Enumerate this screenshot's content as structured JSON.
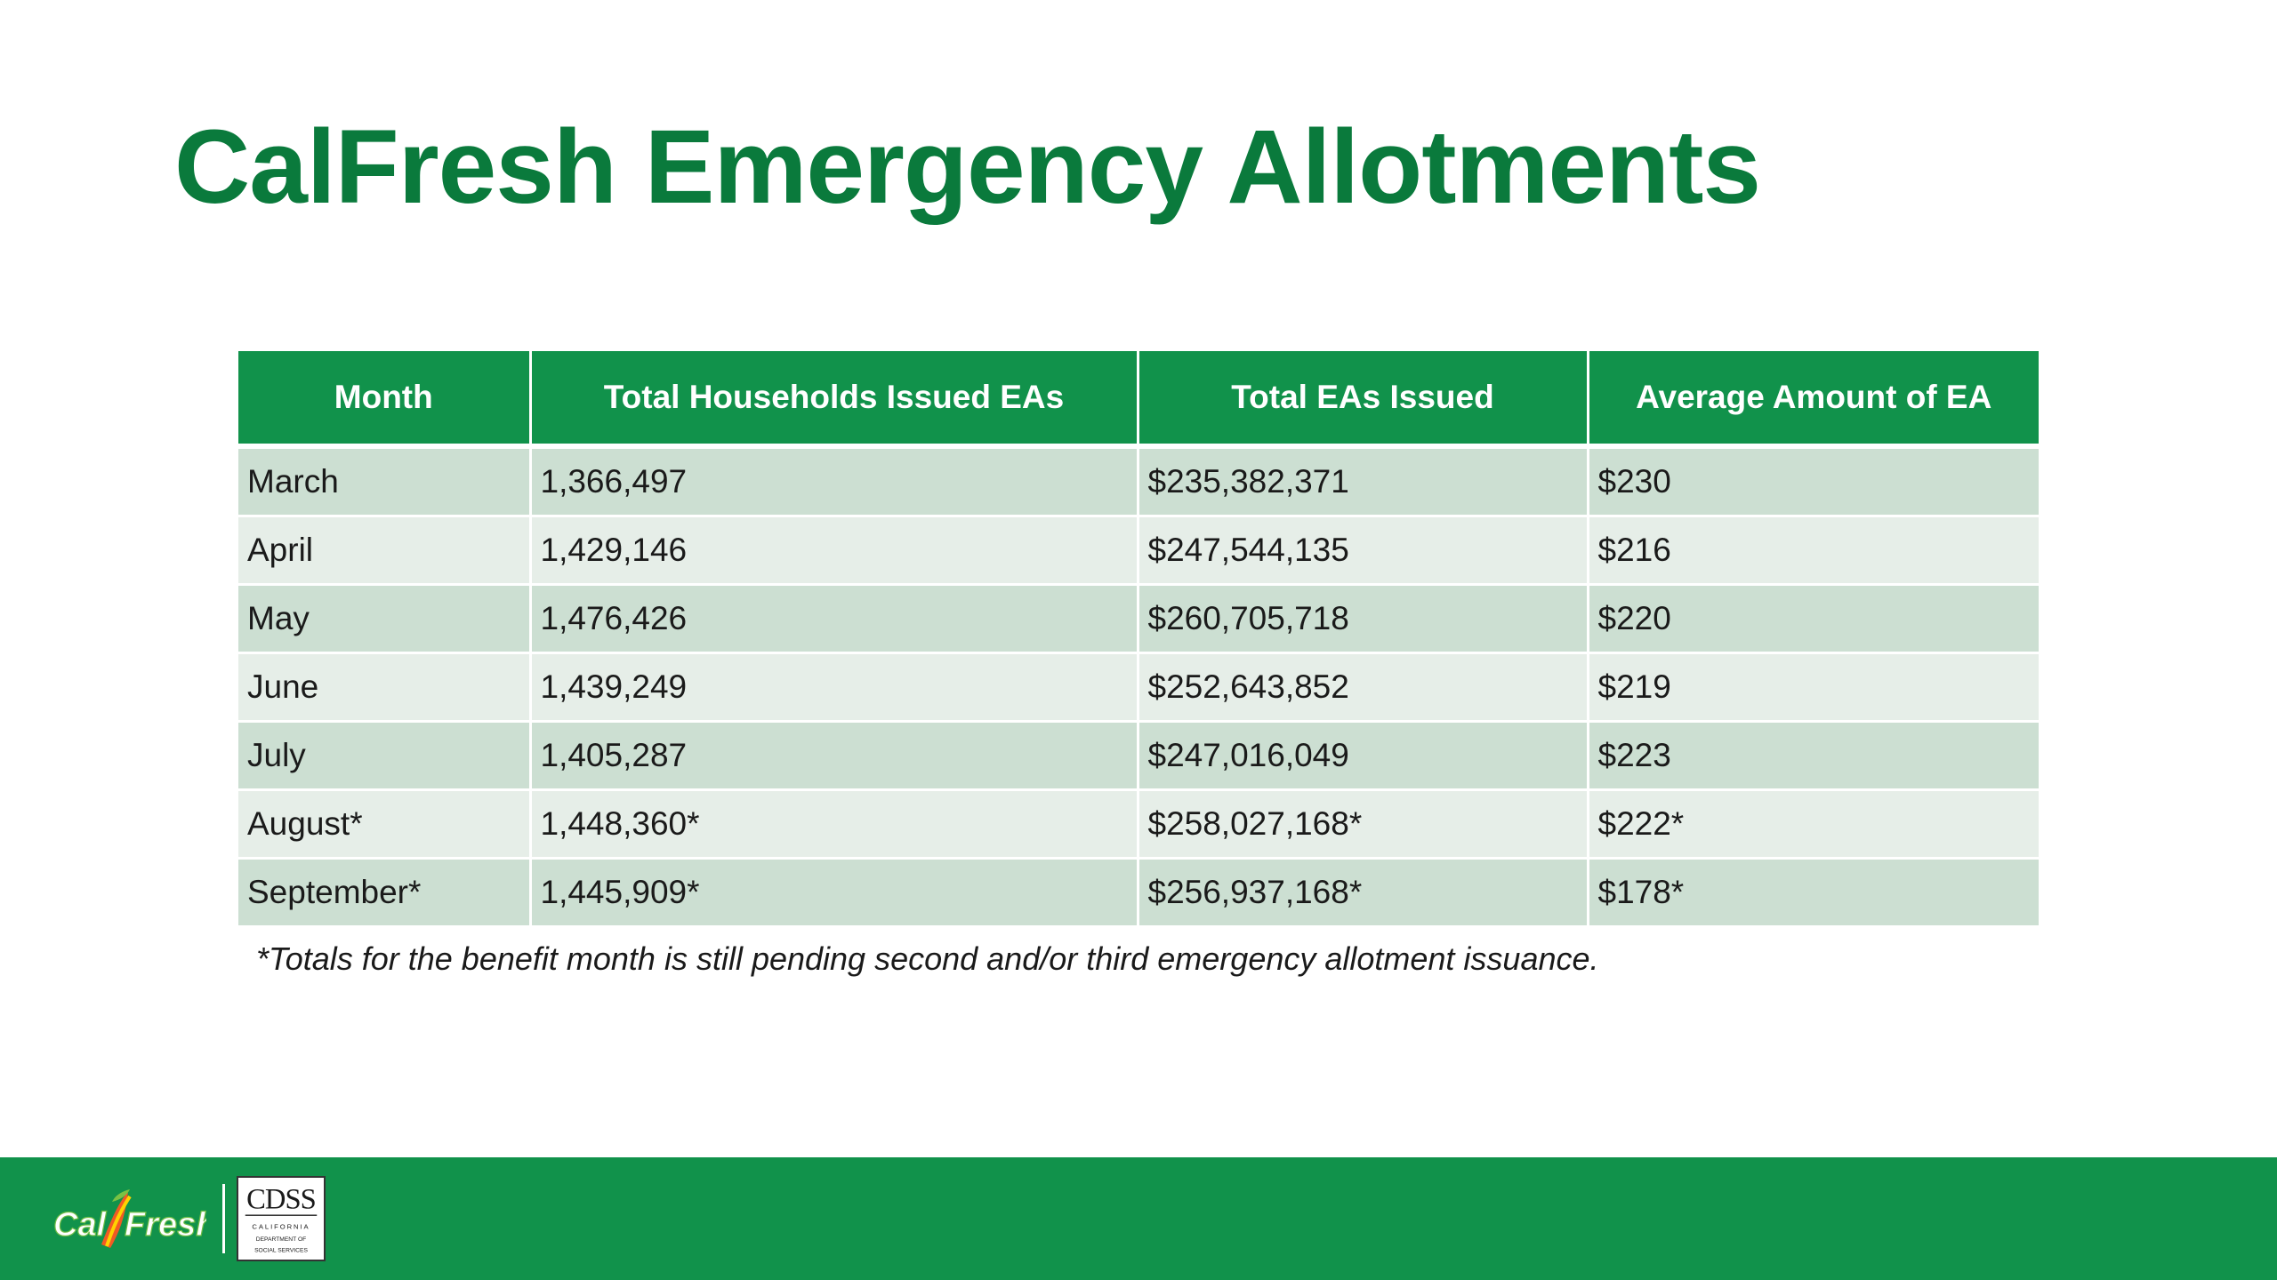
{
  "slide": {
    "title": "CalFresh Emergency Allotments",
    "footnote": "*Totals for the benefit month is still pending second and/or third emergency allotment issuance."
  },
  "table": {
    "headers": [
      "Month",
      "Total Households Issued EAs",
      "Total EAs Issued",
      "Average Amount of EA"
    ],
    "rows": [
      [
        "March",
        "1,366,497",
        "$235,382,371",
        "$230"
      ],
      [
        "April",
        "1,429,146",
        "$247,544,135",
        "$216"
      ],
      [
        "May",
        "1,476,426",
        "$260,705,718",
        "$220"
      ],
      [
        "June",
        "1,439,249",
        "$252,643,852",
        "$219"
      ],
      [
        "July",
        "1,405,287",
        "$247,016,049",
        "$223"
      ],
      [
        "August*",
        "1,448,360*",
        "$258,027,168*",
        "$222*"
      ],
      [
        "September*",
        "1,445,909*",
        "$256,937,168*",
        "$178*"
      ]
    ]
  },
  "footer": {
    "calfresh_logo_text": "CalFresh",
    "cdss_logo_text": "CDSS",
    "cdss_logo_subtext": [
      "CALIFORNIA",
      "DEPARTMENT OF",
      "SOCIAL SERVICES"
    ]
  },
  "colors": {
    "brand_green": "#0a7a3c",
    "header_green": "#11924b",
    "row_dark": "#ccdfd2",
    "row_light": "#e6eee8"
  }
}
